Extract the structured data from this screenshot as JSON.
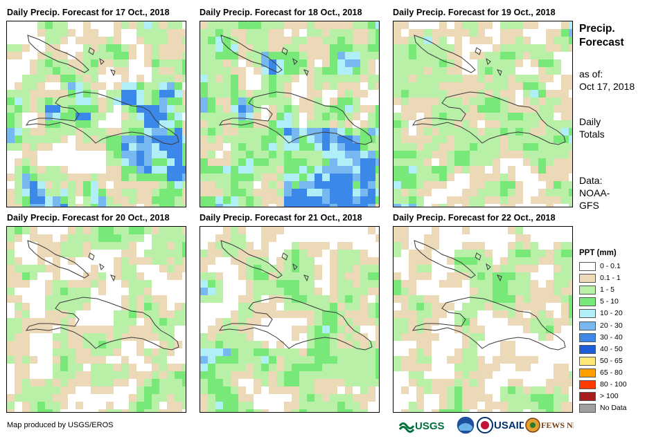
{
  "panels": [
    {
      "title": "Daily Precip. Forecast for 17 Oct., 2018"
    },
    {
      "title": "Daily Precip. Forecast for 18 Oct., 2018"
    },
    {
      "title": "Daily Precip. Forecast for 19 Oct., 2018"
    },
    {
      "title": "Daily Precip. Forecast for 20 Oct., 2018"
    },
    {
      "title": "Daily Precip. Forecast for 21 Oct., 2018"
    },
    {
      "title": "Daily Precip. Forecast for 22 Oct., 2018"
    }
  ],
  "info": {
    "heading_line1": "Precip.",
    "heading_line2": "Forecast",
    "asof_line1": "as of:",
    "asof_line2": "Oct 17, 2018",
    "totals_line1": "Daily",
    "totals_line2": "Totals",
    "data_line1": "Data:",
    "data_line2": "NOAA-",
    "data_line3": "GFS"
  },
  "legend": {
    "title": "PPT (mm)",
    "items": [
      {
        "label": "0 - 0.1",
        "color": "#ffffff"
      },
      {
        "label": "0.1 - 1",
        "color": "#ecd9b7"
      },
      {
        "label": "1 - 5",
        "color": "#b8f0a8"
      },
      {
        "label": "5 - 10",
        "color": "#78e878"
      },
      {
        "label": "10 - 20",
        "color": "#b0eef8"
      },
      {
        "label": "20 - 30",
        "color": "#78b8f0"
      },
      {
        "label": "30 - 40",
        "color": "#3c88e8"
      },
      {
        "label": "40 - 50",
        "color": "#1c5ed8"
      },
      {
        "label": "50 - 65",
        "color": "#ffe878"
      },
      {
        "label": "65 - 80",
        "color": "#ffa000"
      },
      {
        "label": "80 - 100",
        "color": "#ff3c00"
      },
      {
        "label": "> 100",
        "color": "#a81e1e"
      },
      {
        "label": "No Data",
        "color": "#a0a0a0"
      }
    ]
  },
  "footer": "Map produced by USGS/EROS",
  "logos": {
    "usgs": "USGS",
    "usaid": "USAID",
    "fewsnet": "FEWS NET"
  }
}
